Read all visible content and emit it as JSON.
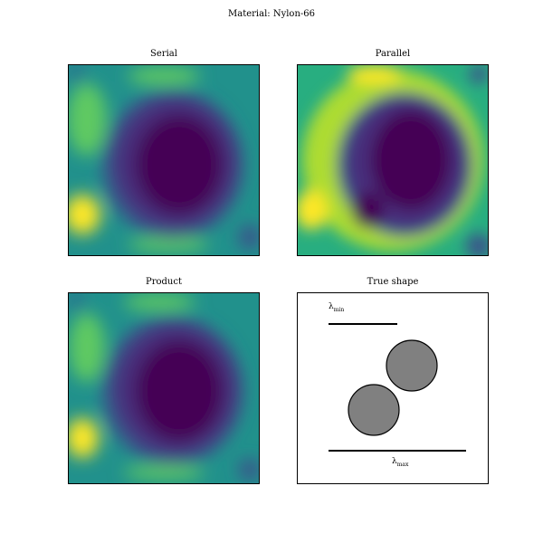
{
  "figure": {
    "suptitle": "Material: Nylon-66"
  },
  "chart_data": [
    {
      "type": "heatmap",
      "title": "Serial",
      "colormap": "viridis",
      "colorscale": [
        "#440154",
        "#472d7b",
        "#3b528b",
        "#2c728e",
        "#21918c",
        "#28ae80",
        "#5ec962",
        "#addc30",
        "#fde725"
      ]
    },
    {
      "type": "heatmap",
      "title": "Parallel",
      "colormap": "viridis",
      "colorscale": [
        "#440154",
        "#472d7b",
        "#3b528b",
        "#2c728e",
        "#21918c",
        "#28ae80",
        "#5ec962",
        "#addc30",
        "#fde725"
      ]
    },
    {
      "type": "heatmap",
      "title": "Product",
      "colormap": "viridis",
      "colorscale": [
        "#440154",
        "#472d7b",
        "#3b528b",
        "#2c728e",
        "#21918c",
        "#28ae80",
        "#5ec962",
        "#addc30",
        "#fde725"
      ]
    },
    {
      "type": "diagram",
      "title": "True shape",
      "lambda_min_label": "λmin",
      "lambda_max_label": "λmax",
      "circle_fill": "#808080",
      "circle_stroke": "#000000",
      "circle_count": 2
    }
  ]
}
